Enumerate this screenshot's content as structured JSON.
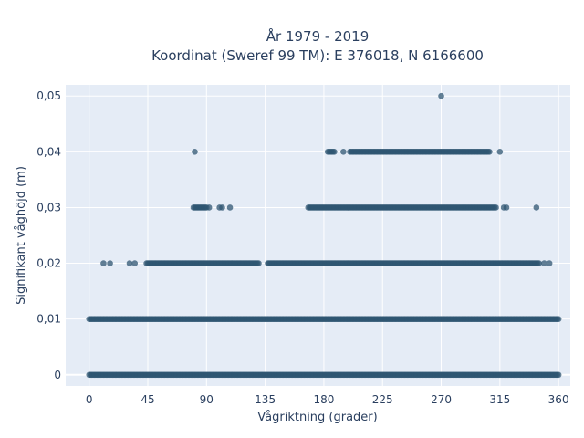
{
  "chart_data": {
    "type": "scatter",
    "title": "År 1979 - 2019",
    "subtitle": "Koordinat (Sweref 99 TM): E 376018, N 6166600",
    "xlabel": "Vågriktning (grader)",
    "ylabel": "Signifikant våghöjd (m)",
    "xlim": [
      -18,
      369
    ],
    "ylim": [
      -0.002,
      0.052
    ],
    "x_ticks": [
      0,
      45,
      90,
      135,
      180,
      225,
      270,
      315,
      360
    ],
    "x_tick_labels": [
      "0",
      "45",
      "90",
      "135",
      "180",
      "225",
      "270",
      "315",
      "360"
    ],
    "y_ticks": [
      0,
      0.01,
      0.02,
      0.03,
      0.04,
      0.05
    ],
    "y_tick_labels": [
      "0",
      "0,01",
      "0,02",
      "0,03",
      "0,04",
      "0,05"
    ],
    "grid": true,
    "series": [
      {
        "marker_color": "#2f5571",
        "points_by_level": [
          {
            "y": 0.0,
            "x_ranges": [
              [
                0,
                360
              ]
            ]
          },
          {
            "y": 0.01,
            "x_ranges": [
              [
                0,
                360
              ]
            ]
          },
          {
            "y": 0.02,
            "x_ranges": [
              [
                44,
                130
              ],
              [
                137,
                345
              ]
            ],
            "x_points": [
              11,
              16,
              31,
              35,
              349,
              353
            ]
          },
          {
            "y": 0.03,
            "x_ranges": [
              [
                80,
                90
              ],
              [
                168,
                312
              ]
            ],
            "x_points": [
              92,
              100,
              102,
              108,
              318,
              320,
              343
            ]
          },
          {
            "y": 0.04,
            "x_ranges": [
              [
                183,
                188
              ],
              [
                200,
                307
              ]
            ],
            "x_points": [
              81,
              195,
              315
            ]
          },
          {
            "y": 0.05,
            "x_points": [
              270
            ]
          }
        ]
      }
    ]
  }
}
